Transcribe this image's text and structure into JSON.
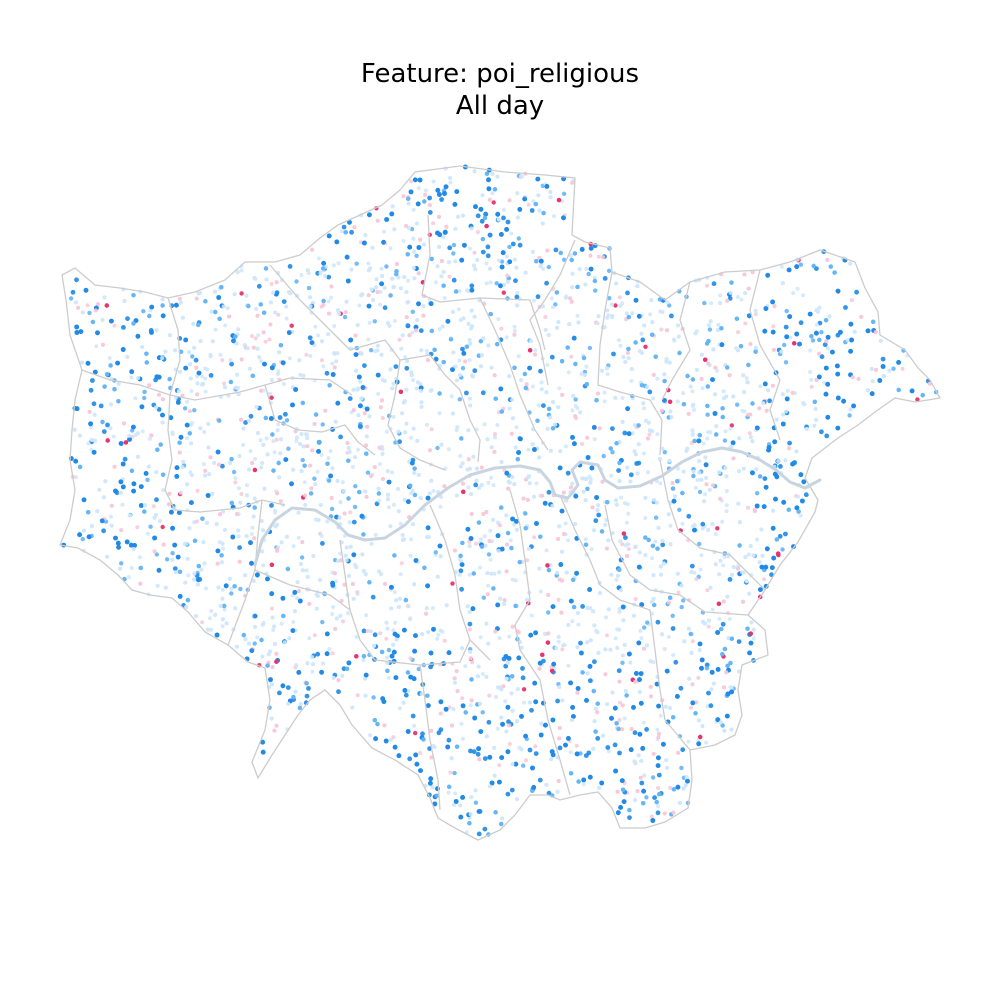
{
  "title": {
    "line1": "Feature: poi_religious",
    "line2": "All day"
  },
  "colors": {
    "background": "#ffffff",
    "boundary": "#cccccc",
    "river": "#c8d4e0",
    "neutral": "#cfe6fb",
    "negative_strong": "#1e88e5",
    "negative_mid": "#64b5f6",
    "positive_light": "#f8c8d8",
    "positive_strong": "#e8336b"
  }
}
